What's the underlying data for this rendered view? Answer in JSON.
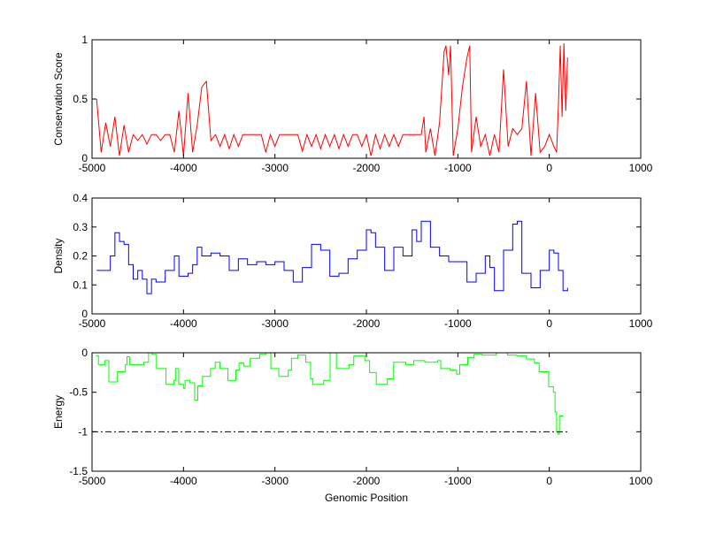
{
  "chart_data": [
    {
      "type": "line",
      "ylabel": "Conservation Score",
      "xlim": [
        -5000,
        1000
      ],
      "ylim": [
        0,
        1
      ],
      "xticks": [
        -5000,
        -4000,
        -3000,
        -2000,
        -1000,
        0,
        1000
      ],
      "yticks": [
        0,
        0.5,
        1
      ],
      "color": "#ff0000",
      "step": false,
      "series": {
        "name": "conservation",
        "x": [
          -4950,
          -4900,
          -4850,
          -4800,
          -4750,
          -4700,
          -4650,
          -4600,
          -4550,
          -4500,
          -4450,
          -4400,
          -4350,
          -4300,
          -4250,
          -4200,
          -4150,
          -4100,
          -4050,
          -4000,
          -3950,
          -3900,
          -3850,
          -3800,
          -3750,
          -3700,
          -3650,
          -3600,
          -3550,
          -3500,
          -3450,
          -3400,
          -3350,
          -3300,
          -3250,
          -3200,
          -3150,
          -3100,
          -3050,
          -3000,
          -2950,
          -2900,
          -2850,
          -2800,
          -2750,
          -2700,
          -2650,
          -2600,
          -2550,
          -2500,
          -2450,
          -2400,
          -2350,
          -2300,
          -2250,
          -2200,
          -2150,
          -2100,
          -2050,
          -2000,
          -1950,
          -1900,
          -1850,
          -1800,
          -1750,
          -1700,
          -1650,
          -1600,
          -1550,
          -1500,
          -1450,
          -1400,
          -1370,
          -1350,
          -1300,
          -1250,
          -1200,
          -1150,
          -1130,
          -1100,
          -1080,
          -1050,
          -1000,
          -950,
          -900,
          -870,
          -850,
          -800,
          -750,
          -700,
          -650,
          -600,
          -550,
          -500,
          -450,
          -400,
          -350,
          -300,
          -250,
          -200,
          -150,
          -100,
          -50,
          0,
          50,
          80,
          100,
          120,
          140,
          160,
          180,
          200
        ],
        "y": [
          0.5,
          0.05,
          0.3,
          0.1,
          0.35,
          0.02,
          0.28,
          0.05,
          0.2,
          0.15,
          0.2,
          0.12,
          0.2,
          0.2,
          0.15,
          0.2,
          0.2,
          0.05,
          0.4,
          0.02,
          0.55,
          0.05,
          0.28,
          0.6,
          0.65,
          0.15,
          0.2,
          0.1,
          0.2,
          0.08,
          0.2,
          0.1,
          0.2,
          0.2,
          0.2,
          0.2,
          0.2,
          0.05,
          0.2,
          0.1,
          0.2,
          0.2,
          0.2,
          0.2,
          0.2,
          0.06,
          0.2,
          0.1,
          0.2,
          0.08,
          0.2,
          0.1,
          0.2,
          0.08,
          0.2,
          0.1,
          0.2,
          0.2,
          0.1,
          0.2,
          0.02,
          0.2,
          0.08,
          0.2,
          0.1,
          0.2,
          0.1,
          0.2,
          0.2,
          0.2,
          0.2,
          0.2,
          0.35,
          0.05,
          0.25,
          0.02,
          0.3,
          0.9,
          0.95,
          0.7,
          0.95,
          0.02,
          0.25,
          0.6,
          0.85,
          0.95,
          0.05,
          0.35,
          0.1,
          0.2,
          0.02,
          0.2,
          0.05,
          0.75,
          0.1,
          0.25,
          0.2,
          0.25,
          0.65,
          0.02,
          0.55,
          0.05,
          0.1,
          0.2,
          0.1,
          0.05,
          0.45,
          0.95,
          0.35,
          0.97,
          0.4,
          0.85
        ]
      }
    },
    {
      "type": "line",
      "ylabel": "Density",
      "xlim": [
        -5000,
        1000
      ],
      "ylim": [
        0,
        0.4
      ],
      "xticks": [
        -5000,
        -4000,
        -3000,
        -2000,
        -1000,
        0,
        1000
      ],
      "yticks": [
        0,
        0.1,
        0.2,
        0.3,
        0.4
      ],
      "color": "#0000ff",
      "step": true,
      "series": {
        "name": "density",
        "x": [
          -4950,
          -4850,
          -4800,
          -4750,
          -4700,
          -4650,
          -4600,
          -4550,
          -4500,
          -4450,
          -4400,
          -4350,
          -4300,
          -4200,
          -4100,
          -4050,
          -3950,
          -3900,
          -3850,
          -3800,
          -3700,
          -3600,
          -3500,
          -3400,
          -3300,
          -3200,
          -3100,
          -3000,
          -2900,
          -2800,
          -2700,
          -2600,
          -2500,
          -2400,
          -2300,
          -2200,
          -2100,
          -2000,
          -1950,
          -1900,
          -1800,
          -1700,
          -1600,
          -1500,
          -1450,
          -1400,
          -1300,
          -1200,
          -1100,
          -1000,
          -900,
          -800,
          -700,
          -650,
          -600,
          -500,
          -400,
          -350,
          -300,
          -200,
          -100,
          0,
          50,
          100,
          150,
          200
        ],
        "y": [
          0.15,
          0.15,
          0.2,
          0.28,
          0.25,
          0.24,
          0.17,
          0.12,
          0.15,
          0.12,
          0.07,
          0.12,
          0.11,
          0.15,
          0.2,
          0.13,
          0.14,
          0.17,
          0.23,
          0.2,
          0.21,
          0.2,
          0.15,
          0.19,
          0.17,
          0.18,
          0.17,
          0.18,
          0.15,
          0.11,
          0.16,
          0.24,
          0.22,
          0.13,
          0.14,
          0.19,
          0.22,
          0.29,
          0.28,
          0.23,
          0.15,
          0.23,
          0.2,
          0.29,
          0.25,
          0.32,
          0.23,
          0.2,
          0.18,
          0.18,
          0.11,
          0.14,
          0.2,
          0.16,
          0.08,
          0.22,
          0.31,
          0.32,
          0.14,
          0.09,
          0.15,
          0.22,
          0.21,
          0.15,
          0.08,
          0.09
        ]
      }
    },
    {
      "type": "line",
      "ylabel": "Energy",
      "xlabel": "Genomic Position",
      "xlim": [
        -5000,
        1000
      ],
      "ylim": [
        -1.5,
        0
      ],
      "xticks": [
        -5000,
        -4000,
        -3000,
        -2000,
        -1000,
        0,
        1000
      ],
      "yticks": [
        -1.5,
        -1,
        -0.5,
        0
      ],
      "color": "#00ff00",
      "step": true,
      "reference_line": {
        "y": -1,
        "x": [
          -5000,
          200
        ],
        "style": "dash-dot",
        "color": "#000000"
      },
      "series": {
        "name": "energy",
        "x": [
          -4958,
          -4930,
          -4861,
          -4816,
          -4722,
          -4635,
          -4618,
          -4590,
          -4434,
          -4382,
          -4347,
          -4295,
          -4191,
          -4104,
          -4087,
          -4052,
          -4000,
          -3983,
          -3930,
          -3878,
          -3844,
          -3792,
          -3705,
          -3653,
          -3601,
          -3514,
          -3427,
          -3392,
          -3340,
          -3271,
          -3167,
          -3098,
          -3045,
          -2958,
          -2854,
          -2819,
          -2750,
          -2663,
          -2610,
          -2587,
          -2467,
          -2397,
          -2328,
          -2190,
          -2138,
          -2017,
          -1965,
          -1892,
          -1771,
          -1702,
          -1569,
          -1482,
          -1361,
          -1222,
          -1187,
          -1083,
          -1014,
          -979,
          -892,
          -823,
          -736,
          -580,
          -458,
          -354,
          -250,
          -163,
          -111,
          -7,
          45,
          63,
          80,
          97,
          111,
          155
        ],
        "y": [
          -0.04,
          -0.15,
          -0.1,
          -0.37,
          -0.24,
          -0.15,
          -0.05,
          -0.15,
          -0.12,
          0,
          -0.02,
          -0.2,
          -0.4,
          -0.35,
          -0.2,
          -0.4,
          -0.45,
          -0.35,
          -0.38,
          -0.6,
          -0.42,
          -0.3,
          -0.2,
          -0.12,
          -0.2,
          -0.35,
          -0.22,
          -0.13,
          -0.17,
          -0.07,
          -0.02,
          0,
          -0.2,
          -0.3,
          -0.22,
          -0.07,
          -0.03,
          -0.12,
          -0.33,
          -0.4,
          -0.35,
          0,
          -0.2,
          -0.15,
          -0.04,
          -0.1,
          -0.25,
          -0.4,
          -0.33,
          -0.12,
          -0.15,
          -0.1,
          -0.12,
          -0.1,
          -0.2,
          -0.22,
          -0.27,
          -0.15,
          -0.06,
          -0.02,
          -0.03,
          0,
          -0.03,
          -0.04,
          -0.08,
          -0.13,
          -0.24,
          -0.43,
          -0.5,
          -0.75,
          -1.0,
          -1.03,
          -0.8,
          -0.8
        ]
      }
    }
  ]
}
